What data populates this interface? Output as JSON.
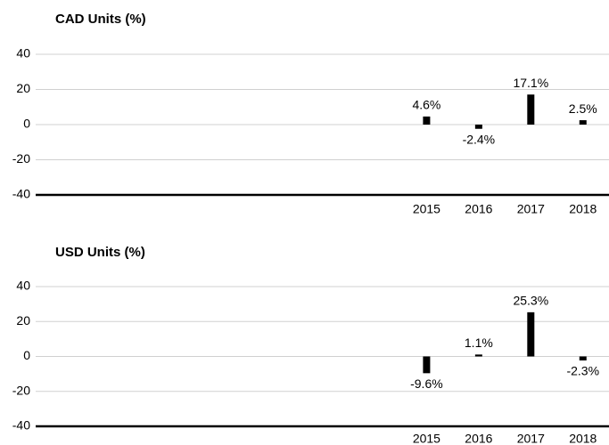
{
  "chart_data": [
    {
      "type": "bar",
      "title": "CAD Units (%)",
      "categories": [
        null,
        null,
        null,
        null,
        null,
        null,
        null,
        "2015",
        "2016",
        "2017",
        "2018"
      ],
      "values": [
        null,
        null,
        null,
        null,
        null,
        null,
        null,
        4.6,
        -2.4,
        17.1,
        2.5
      ],
      "value_labels": [
        null,
        null,
        null,
        null,
        null,
        null,
        null,
        "4.6%",
        "-2.4%",
        "17.1%",
        "2.5%"
      ],
      "color": "#000000",
      "ylim": [
        -40,
        40
      ],
      "yticks": [
        -40,
        -20,
        0,
        20,
        40
      ],
      "grid": true
    },
    {
      "type": "bar",
      "title": "USD Units (%)",
      "categories": [
        null,
        null,
        null,
        null,
        null,
        null,
        null,
        "2015",
        "2016",
        "2017",
        "2018"
      ],
      "values": [
        null,
        null,
        null,
        null,
        null,
        null,
        null,
        -9.6,
        1.1,
        25.3,
        -2.3
      ],
      "value_labels": [
        null,
        null,
        null,
        null,
        null,
        null,
        null,
        "-9.6%",
        "1.1%",
        "25.3%",
        "-2.3%"
      ],
      "color": "#000000",
      "ylim": [
        -40,
        40
      ],
      "yticks": [
        -40,
        -20,
        0,
        20,
        40
      ],
      "grid": true
    }
  ]
}
